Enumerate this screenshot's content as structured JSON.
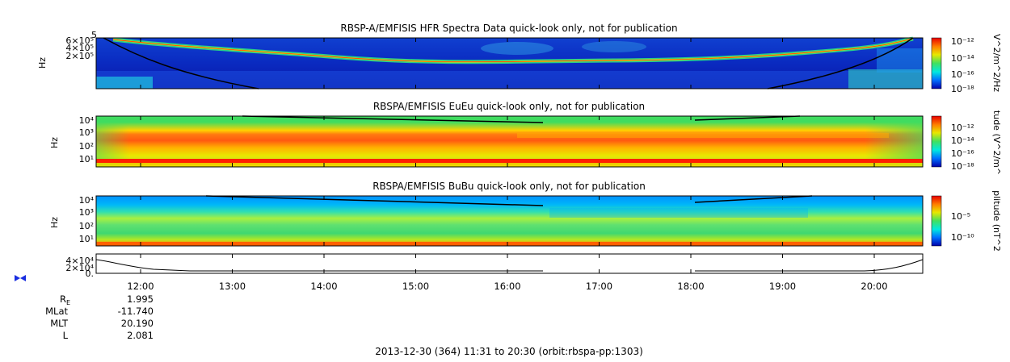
{
  "panels": [
    {
      "id": "hfr",
      "title": "RBSP-A/EMFISIS  HFR Spectra Data quick-look only, not for publication",
      "ylabel": "Hz",
      "yticks": [
        "6×10⁵",
        "4×10⁵",
        "2×10⁵"
      ],
      "top_tick": "5",
      "colorbar_label": "V^2/m^2/Hz",
      "colorbar_ticks": [
        "10⁻¹²",
        "10⁻¹⁴",
        "10⁻¹⁶",
        "10⁻¹⁸"
      ]
    },
    {
      "id": "eueu",
      "title": "RBSPA/EMFISIS  EuEu quick-look only, not for publication",
      "ylabel": "Hz",
      "yticks": [
        "10⁴",
        "10³",
        "10²",
        "10¹"
      ],
      "colorbar_label": "tude (V^2/m^",
      "colorbar_ticks": [
        "10⁻¹²",
        "10⁻¹⁴",
        "10⁻¹⁶",
        "10⁻¹⁸"
      ]
    },
    {
      "id": "bubu",
      "title": "RBSPA/EMFISIS  BuBu quick-look only, not for publication",
      "ylabel": "Hz",
      "yticks": [
        "10⁴",
        "10³",
        "10²",
        "10¹"
      ],
      "colorbar_label": "plitude (nT^2",
      "colorbar_ticks": [
        "10⁻⁵",
        "10⁻¹⁰"
      ]
    },
    {
      "id": "line",
      "yticks": [
        "4×10⁴",
        "2×10⁴",
        "0."
      ]
    }
  ],
  "time_axis": [
    "12:00",
    "13:00",
    "14:00",
    "15:00",
    "16:00",
    "17:00",
    "18:00",
    "19:00",
    "20:00"
  ],
  "ephemeris": {
    "labels": [
      "R",
      "MLat",
      "MLT",
      "L"
    ],
    "r_subscript": "E",
    "values": [
      "1.995",
      "-11.740",
      "20.190",
      "2.081"
    ]
  },
  "footer": "2013-12-30 (364) 11:31 to 20:30 (orbit:rbspa-pp:1303)",
  "chart_data": {
    "type": "heatmap",
    "x_range": [
      "11:31",
      "20:30"
    ],
    "x_ticks": [
      "12:00",
      "13:00",
      "14:00",
      "15:00",
      "16:00",
      "17:00",
      "18:00",
      "19:00",
      "20:00"
    ],
    "panels": [
      "HFR Spectra",
      "EuEu",
      "BuBu",
      "line"
    ],
    "colorscale": [
      "#0000aa",
      "#0070ff",
      "#00e8e0",
      "#40e060",
      "#e8e800",
      "#ff8000",
      "#e80000"
    ]
  }
}
